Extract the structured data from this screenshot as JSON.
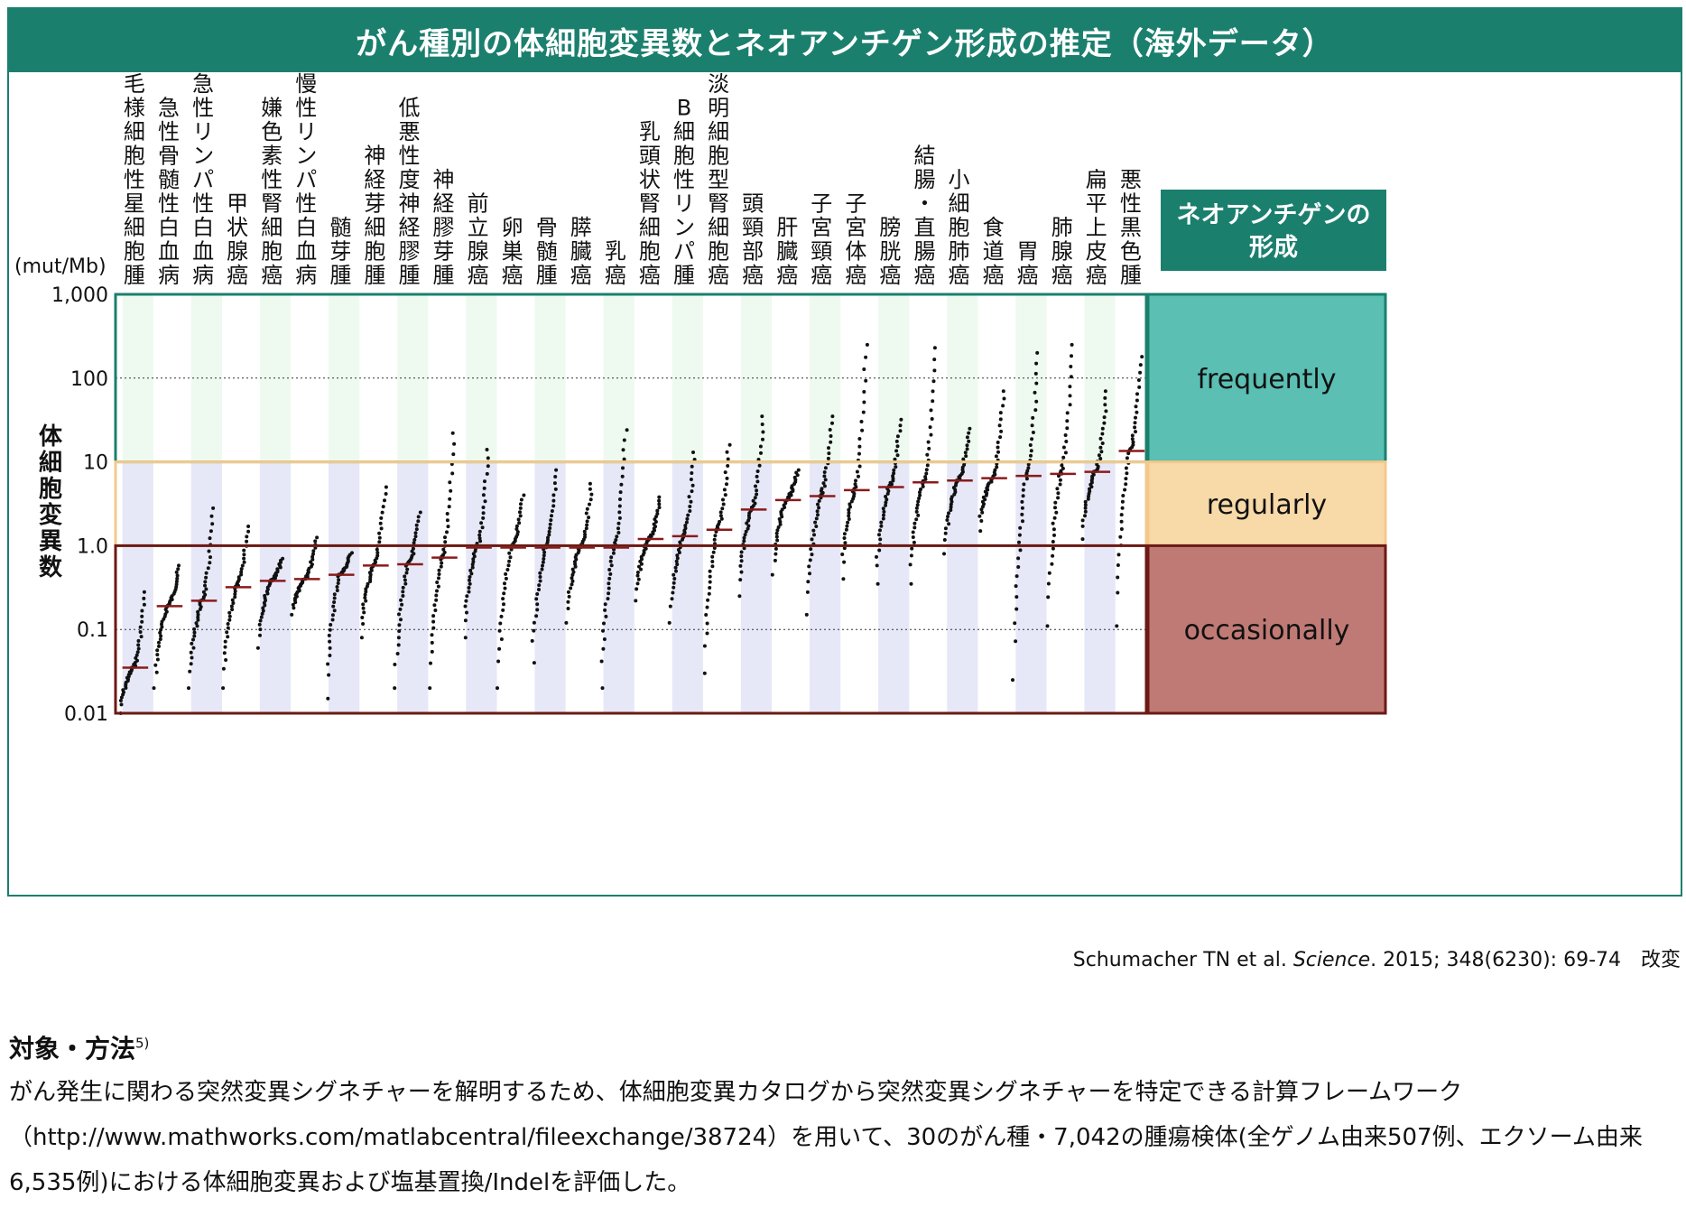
{
  "title": "がん種別の体細胞変異数とネオアンチゲン形成の推定（海外データ）",
  "chart_data": {
    "type": "scatter",
    "unit_label": "(mut/Mb)",
    "ylabel": "体細胞変異数",
    "yscale": "log",
    "ylim": [
      0.01,
      1000
    ],
    "yticks": [
      "1,000",
      "100",
      "10",
      "1.0",
      "0.1",
      "0.01"
    ],
    "categories": [
      "毛様細胞性星細胞腫",
      "急性骨髄性白血病",
      "急性リンパ性白血病",
      "甲状腺癌",
      "嫌色素性腎細胞癌",
      "慢性リンパ性白血病",
      "髄芽腫",
      "神経芽細胞腫",
      "低悪性度神経膠腫",
      "神経膠芽腫",
      "前立腺癌",
      "卵巣癌",
      "骨髄腫",
      "膵臓癌",
      "乳癌",
      "乳頭状腎細胞癌",
      "B細胞性リンパ腫",
      "淡明細胞型腎細胞癌",
      "頭頸部癌",
      "肝臓癌",
      "子宮頸癌",
      "子宮体癌",
      "膀胱癌",
      "結腸・直腸癌",
      "小細胞肺癌",
      "食道癌",
      "胃癌",
      "肺腺癌",
      "扁平上皮癌",
      "悪性黒色腫"
    ],
    "medians": [
      0.035,
      0.19,
      0.22,
      0.32,
      0.38,
      0.4,
      0.45,
      0.58,
      0.6,
      0.72,
      0.95,
      0.95,
      0.95,
      0.95,
      0.95,
      1.2,
      1.3,
      1.55,
      2.7,
      3.5,
      3.9,
      4.6,
      5.0,
      5.7,
      6.0,
      6.4,
      6.8,
      7.2,
      7.6,
      13.5
    ],
    "ranges": [
      [
        0.01,
        0.28
      ],
      [
        0.02,
        0.58
      ],
      [
        0.02,
        2.8
      ],
      [
        0.02,
        1.7
      ],
      [
        0.06,
        0.7
      ],
      [
        0.15,
        1.25
      ],
      [
        0.015,
        0.82
      ],
      [
        0.08,
        5
      ],
      [
        0.02,
        2.5
      ],
      [
        0.02,
        22
      ],
      [
        0.08,
        14
      ],
      [
        0.02,
        4
      ],
      [
        0.04,
        8
      ],
      [
        0.12,
        5.5
      ],
      [
        0.02,
        24
      ],
      [
        0.22,
        3.8
      ],
      [
        0.12,
        13
      ],
      [
        0.03,
        16
      ],
      [
        0.25,
        35
      ],
      [
        0.45,
        8
      ],
      [
        0.15,
        35
      ],
      [
        0.4,
        250
      ],
      [
        0.35,
        32
      ],
      [
        0.35,
        230
      ],
      [
        0.8,
        25
      ],
      [
        1.5,
        70
      ],
      [
        0.025,
        200
      ],
      [
        0.11,
        250
      ],
      [
        1.2,
        70
      ],
      [
        0.11,
        180
      ]
    ],
    "bands": [
      {
        "label": "frequently",
        "min": 10,
        "max": 1000,
        "color": "#5bbfb3"
      },
      {
        "label": "regularly",
        "min": 1,
        "max": 10,
        "color": "#f8d9a8"
      },
      {
        "label": "occasionally",
        "min": 0.01,
        "max": 1,
        "color": "#c07a75"
      }
    ],
    "legend_header": "ネオアンチゲンの形成",
    "grid": "dotted at 0.1 and 100",
    "median_color": "#8b1a1a",
    "point_color": "#111111"
  },
  "citation": {
    "authors": "Schumacher TN et al.",
    "journal": "Science",
    "rest": ". 2015; 348(6230): 69-74　改変"
  },
  "method": {
    "heading": "対象・方法",
    "ref": "5)",
    "body": "がん発生に関わる突然変異シグネチャーを解明するため、体細胞変異カタログから突然変異シグネチャーを特定できる計算フレームワーク（http://www.mathworks.com/matlabcentral/fileexchange/38724）を用いて、30のがん種・7,042の腫瘍検体(全ゲノム由来507例、エクソーム由来6,535例)における体細胞変異および塩基置換/Indelを評価した。"
  }
}
